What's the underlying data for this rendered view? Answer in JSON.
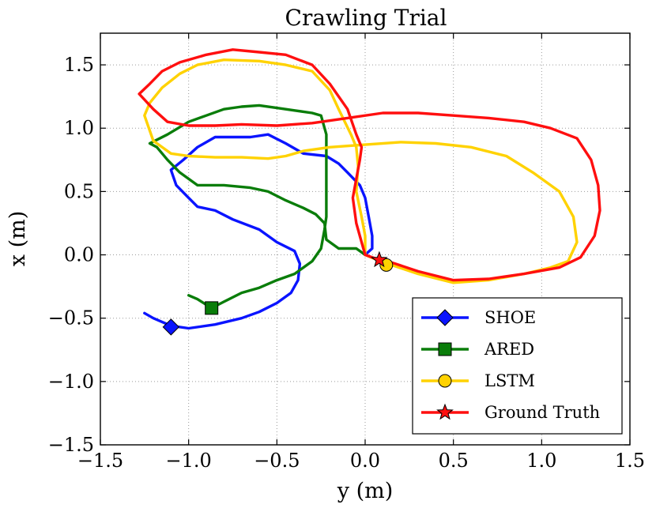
{
  "chart_data": {
    "type": "line",
    "title": "Crawling Trial",
    "xlabel": "y (m)",
    "ylabel": "x (m)",
    "xlim": [
      -1.5,
      1.5
    ],
    "ylim": [
      -1.5,
      1.75
    ],
    "xticks": [
      -1.5,
      -1.0,
      -0.5,
      0.0,
      0.5,
      1.0,
      1.5
    ],
    "xtick_labels": [
      "−1.5",
      "−1.0",
      "−0.5",
      "0.0",
      "0.5",
      "1.0",
      "1.5"
    ],
    "yticks": [
      -1.5,
      -1.0,
      -0.5,
      0.0,
      0.5,
      1.0,
      1.5
    ],
    "ytick_labels": [
      "−1.5",
      "−1.0",
      "−0.5",
      "0.0",
      "0.5",
      "1.0",
      "1.5"
    ],
    "grid": true,
    "legend_position": "bottom-right",
    "series": [
      {
        "name": "SHOE",
        "color": "#0a14ff",
        "marker": "diamond",
        "marker_point": [
          -1.1,
          -0.57
        ],
        "points": [
          [
            0.0,
            0.0
          ],
          [
            0.04,
            0.05
          ],
          [
            0.04,
            0.15
          ],
          [
            0.02,
            0.3
          ],
          [
            0.0,
            0.45
          ],
          [
            -0.03,
            0.55
          ],
          [
            -0.1,
            0.65
          ],
          [
            -0.15,
            0.72
          ],
          [
            -0.22,
            0.78
          ],
          [
            -0.35,
            0.8
          ],
          [
            -0.45,
            0.88
          ],
          [
            -0.55,
            0.95
          ],
          [
            -0.65,
            0.93
          ],
          [
            -0.75,
            0.93
          ],
          [
            -0.85,
            0.93
          ],
          [
            -0.95,
            0.85
          ],
          [
            -1.03,
            0.75
          ],
          [
            -1.1,
            0.67
          ],
          [
            -1.07,
            0.55
          ],
          [
            -1.0,
            0.45
          ],
          [
            -0.95,
            0.38
          ],
          [
            -0.85,
            0.35
          ],
          [
            -0.75,
            0.28
          ],
          [
            -0.6,
            0.2
          ],
          [
            -0.5,
            0.1
          ],
          [
            -0.4,
            0.03
          ],
          [
            -0.37,
            -0.07
          ],
          [
            -0.38,
            -0.2
          ],
          [
            -0.42,
            -0.3
          ],
          [
            -0.5,
            -0.38
          ],
          [
            -0.6,
            -0.45
          ],
          [
            -0.7,
            -0.5
          ],
          [
            -0.85,
            -0.55
          ],
          [
            -1.0,
            -0.58
          ],
          [
            -1.1,
            -0.56
          ],
          [
            -1.2,
            -0.5
          ],
          [
            -1.25,
            -0.46
          ]
        ]
      },
      {
        "name": "ARED",
        "color": "#0a7d0a",
        "marker": "square",
        "marker_point": [
          -0.87,
          -0.42
        ],
        "points": [
          [
            0.0,
            0.0
          ],
          [
            -0.05,
            0.05
          ],
          [
            -0.15,
            0.05
          ],
          [
            -0.22,
            0.12
          ],
          [
            -0.23,
            0.25
          ],
          [
            -0.28,
            0.32
          ],
          [
            -0.35,
            0.37
          ],
          [
            -0.45,
            0.43
          ],
          [
            -0.55,
            0.5
          ],
          [
            -0.65,
            0.53
          ],
          [
            -0.8,
            0.55
          ],
          [
            -0.95,
            0.55
          ],
          [
            -1.05,
            0.65
          ],
          [
            -1.12,
            0.75
          ],
          [
            -1.18,
            0.85
          ],
          [
            -1.22,
            0.88
          ],
          [
            -1.12,
            0.95
          ],
          [
            -1.0,
            1.05
          ],
          [
            -0.9,
            1.1
          ],
          [
            -0.8,
            1.15
          ],
          [
            -0.7,
            1.17
          ],
          [
            -0.6,
            1.18
          ],
          [
            -0.5,
            1.16
          ],
          [
            -0.4,
            1.14
          ],
          [
            -0.3,
            1.12
          ],
          [
            -0.25,
            1.1
          ],
          [
            -0.22,
            0.95
          ],
          [
            -0.22,
            0.5
          ],
          [
            -0.22,
            0.3
          ],
          [
            -0.23,
            0.2
          ],
          [
            -0.25,
            0.05
          ],
          [
            -0.3,
            -0.05
          ],
          [
            -0.4,
            -0.15
          ],
          [
            -0.5,
            -0.2
          ],
          [
            -0.6,
            -0.26
          ],
          [
            -0.7,
            -0.3
          ],
          [
            -0.8,
            -0.37
          ],
          [
            -0.87,
            -0.42
          ],
          [
            -0.95,
            -0.35
          ],
          [
            -1.0,
            -0.32
          ]
        ]
      },
      {
        "name": "LSTM",
        "color": "#ffd200",
        "marker": "circle",
        "marker_point": [
          0.12,
          -0.08
        ],
        "points": [
          [
            0.0,
            0.0
          ],
          [
            0.0,
            0.15
          ],
          [
            -0.02,
            0.3
          ],
          [
            -0.05,
            0.5
          ],
          [
            -0.04,
            0.7
          ],
          [
            -0.05,
            0.85
          ],
          [
            -0.08,
            0.95
          ],
          [
            -0.15,
            1.15
          ],
          [
            -0.2,
            1.3
          ],
          [
            -0.3,
            1.45
          ],
          [
            -0.45,
            1.5
          ],
          [
            -0.6,
            1.53
          ],
          [
            -0.8,
            1.54
          ],
          [
            -0.95,
            1.5
          ],
          [
            -1.05,
            1.43
          ],
          [
            -1.15,
            1.32
          ],
          [
            -1.22,
            1.2
          ],
          [
            -1.25,
            1.1
          ],
          [
            -1.2,
            0.9
          ],
          [
            -1.1,
            0.8
          ],
          [
            -1.0,
            0.78
          ],
          [
            -0.85,
            0.77
          ],
          [
            -0.7,
            0.77
          ],
          [
            -0.55,
            0.76
          ],
          [
            -0.45,
            0.78
          ],
          [
            -0.35,
            0.82
          ],
          [
            -0.2,
            0.85
          ],
          [
            0.0,
            0.87
          ],
          [
            0.2,
            0.89
          ],
          [
            0.4,
            0.88
          ],
          [
            0.6,
            0.85
          ],
          [
            0.8,
            0.78
          ],
          [
            0.95,
            0.65
          ],
          [
            1.1,
            0.5
          ],
          [
            1.18,
            0.3
          ],
          [
            1.2,
            0.1
          ],
          [
            1.15,
            -0.05
          ],
          [
            1.05,
            -0.1
          ],
          [
            0.9,
            -0.15
          ],
          [
            0.7,
            -0.2
          ],
          [
            0.5,
            -0.22
          ],
          [
            0.3,
            -0.15
          ],
          [
            0.15,
            -0.08
          ],
          [
            0.05,
            -0.03
          ],
          [
            0.0,
            0.0
          ]
        ]
      },
      {
        "name": "Ground Truth",
        "color": "#ff0f0f",
        "marker": "star",
        "marker_point": [
          0.08,
          -0.04
        ],
        "points": [
          [
            0.0,
            0.0
          ],
          [
            -0.02,
            0.1
          ],
          [
            -0.05,
            0.25
          ],
          [
            -0.07,
            0.45
          ],
          [
            -0.05,
            0.6
          ],
          [
            -0.03,
            0.75
          ],
          [
            -0.02,
            0.85
          ],
          [
            -0.05,
            0.95
          ],
          [
            -0.1,
            1.15
          ],
          [
            -0.2,
            1.35
          ],
          [
            -0.3,
            1.5
          ],
          [
            -0.45,
            1.58
          ],
          [
            -0.6,
            1.6
          ],
          [
            -0.75,
            1.62
          ],
          [
            -0.9,
            1.58
          ],
          [
            -1.05,
            1.52
          ],
          [
            -1.15,
            1.45
          ],
          [
            -1.22,
            1.35
          ],
          [
            -1.28,
            1.27
          ],
          [
            -1.2,
            1.15
          ],
          [
            -1.12,
            1.05
          ],
          [
            -1.0,
            1.02
          ],
          [
            -0.85,
            1.02
          ],
          [
            -0.7,
            1.03
          ],
          [
            -0.5,
            1.02
          ],
          [
            -0.3,
            1.04
          ],
          [
            -0.1,
            1.08
          ],
          [
            0.1,
            1.12
          ],
          [
            0.3,
            1.12
          ],
          [
            0.5,
            1.1
          ],
          [
            0.7,
            1.08
          ],
          [
            0.9,
            1.05
          ],
          [
            1.05,
            1.0
          ],
          [
            1.2,
            0.92
          ],
          [
            1.28,
            0.75
          ],
          [
            1.32,
            0.55
          ],
          [
            1.33,
            0.35
          ],
          [
            1.3,
            0.15
          ],
          [
            1.22,
            -0.02
          ],
          [
            1.1,
            -0.1
          ],
          [
            0.9,
            -0.15
          ],
          [
            0.7,
            -0.19
          ],
          [
            0.5,
            -0.2
          ],
          [
            0.3,
            -0.13
          ],
          [
            0.15,
            -0.06
          ],
          [
            0.08,
            -0.04
          ],
          [
            0.0,
            0.0
          ]
        ]
      }
    ]
  }
}
